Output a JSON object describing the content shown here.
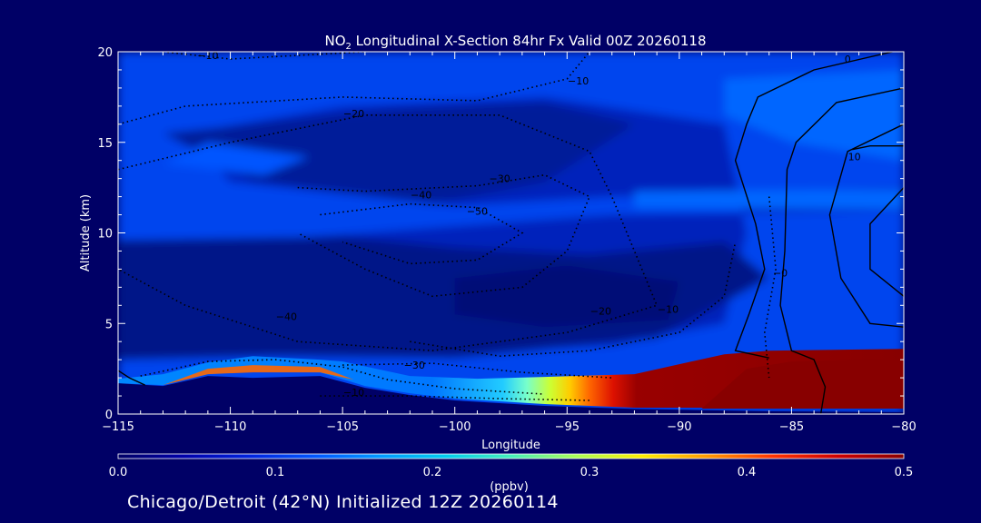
{
  "chart_data": {
    "type": "heatmap",
    "title_prefix": "NO",
    "title_subscript": "2",
    "title_rest": " Longitudinal X-Section 84hr  Fx Valid 00Z 20260118",
    "xlabel": "Longitude",
    "ylabel": "Altitude (km)",
    "xlim": [
      -115,
      -80
    ],
    "ylim": [
      0,
      20
    ],
    "x_ticks": [
      -115,
      -110,
      -105,
      -100,
      -95,
      -90,
      -85,
      -80
    ],
    "x_tick_labels": [
      "−115",
      "−110",
      "−105",
      "−100",
      "−95",
      "−90",
      "−85",
      "−80"
    ],
    "y_ticks": [
      0,
      5,
      10,
      15,
      20
    ],
    "y_tick_labels": [
      "0",
      "5",
      "10",
      "15",
      "20"
    ],
    "colorbar": {
      "label": "(ppbv)",
      "range": [
        0.0,
        0.5
      ],
      "ticks": [
        0.0,
        0.1,
        0.2,
        0.3,
        0.4,
        0.5
      ],
      "tick_labels": [
        "0.0",
        "0.1",
        "0.2",
        "0.3",
        "0.4",
        "0.5"
      ],
      "colors": [
        "#000066",
        "#0000aa",
        "#0022dd",
        "#0055ff",
        "#0099ff",
        "#00ccee",
        "#44eebb",
        "#aaff55",
        "#ffee00",
        "#ff9900",
        "#ff3300",
        "#cc0000",
        "#880000"
      ]
    },
    "contour_labels": [
      {
        "text": "−10",
        "lon": -111,
        "alt": 19.8
      },
      {
        "text": "−10",
        "lon": -94.5,
        "alt": 18.4
      },
      {
        "text": "−20",
        "lon": -104.5,
        "alt": 16.6
      },
      {
        "text": "−30",
        "lon": -98,
        "alt": 13.0
      },
      {
        "text": "−40",
        "lon": -101.5,
        "alt": 12.1
      },
      {
        "text": "−50",
        "lon": -99,
        "alt": 11.2
      },
      {
        "text": "−40",
        "lon": -107.5,
        "alt": 5.4
      },
      {
        "text": "−20",
        "lon": -93.5,
        "alt": 5.7
      },
      {
        "text": "−10",
        "lon": -90.5,
        "alt": 5.8
      },
      {
        "text": "−30",
        "lon": -101.8,
        "alt": 2.7
      },
      {
        "text": "−10",
        "lon": -104.5,
        "alt": 1.2
      },
      {
        "text": "0",
        "lon": -82.5,
        "alt": 19.6
      },
      {
        "text": "10",
        "lon": -82.2,
        "alt": 14.2
      },
      {
        "text": "−0",
        "lon": -85.5,
        "alt": 7.8
      }
    ]
  },
  "footer": {
    "text": "Chicago/Detroit (42°N) Initialized 12Z 20260114"
  },
  "colors": {
    "background": "#000066",
    "foreground": "#ffffff",
    "terrain_fill": "#000066",
    "high_concentration": "#880000"
  }
}
